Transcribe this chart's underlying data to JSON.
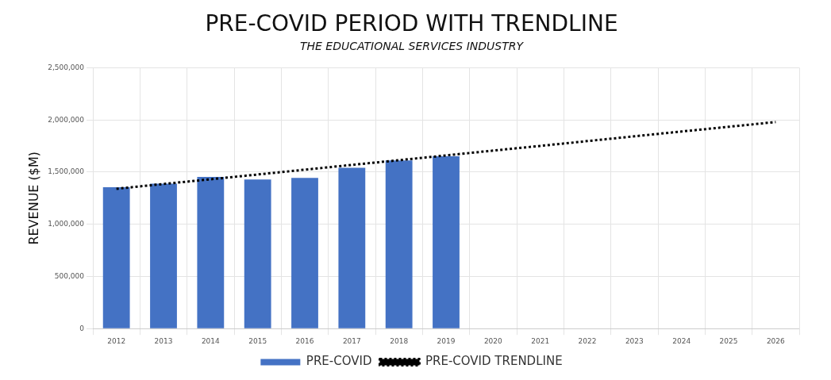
{
  "chart_data": {
    "type": "bar",
    "title": "PRE-COVID PERIOD WITH TRENDLINE",
    "subtitle": "THE EDUCATIONAL SERVICES INDUSTRY",
    "ylabel": "REVENUE ($M)",
    "categories": [
      "2012",
      "2013",
      "2014",
      "2015",
      "2016",
      "2017",
      "2018",
      "2019",
      "2020",
      "2021",
      "2022",
      "2023",
      "2024",
      "2025",
      "2026"
    ],
    "series": [
      {
        "name": "PRE-COVID",
        "color": "#4472c4",
        "values": [
          1355000,
          1390000,
          1453000,
          1429000,
          1444000,
          1541000,
          1612000,
          1651000,
          null,
          null,
          null,
          null,
          null,
          null,
          null
        ]
      },
      {
        "name": "PRE-COVID TRENDLINE",
        "type": "line",
        "color": "#000000",
        "line_style": "dotted",
        "marker": "none",
        "values": [
          1340000,
          1386000,
          1431000,
          1477000,
          1523000,
          1569000,
          1614000,
          1660000,
          1706000,
          1751000,
          1797000,
          1843000,
          1889000,
          1934000,
          1980000
        ]
      }
    ],
    "ylim": [
      0,
      2500000
    ],
    "yticks": [
      {
        "value": 0,
        "label": "0"
      },
      {
        "value": 500000,
        "label": "500,000"
      },
      {
        "value": 1000000,
        "label": "1,000,000"
      },
      {
        "value": 1500000,
        "label": "1,500,000"
      },
      {
        "value": 2000000,
        "label": "2,000,000"
      },
      {
        "value": 2500000,
        "label": "2,500,000"
      }
    ],
    "grid": true,
    "legend": "bottom"
  }
}
